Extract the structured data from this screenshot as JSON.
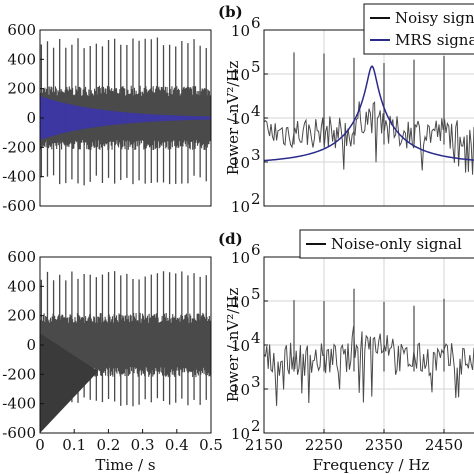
{
  "chart_data": [
    {
      "id": "a",
      "type": "line",
      "panel_label": "",
      "xlabel": "",
      "ylabel": "",
      "xlim": [
        0,
        0.5
      ],
      "ylim": [
        -600,
        600
      ],
      "xticks": [],
      "yticks": [
        600,
        400,
        200,
        0,
        -200,
        -400,
        -600
      ],
      "series": [
        {
          "name": "",
          "role": "noisy",
          "color": "#4a4a4a",
          "spikes_up": 540,
          "spikes_down": -460,
          "base_amplitude": 200
        },
        {
          "name": "",
          "role": "mrs",
          "color": "#3b35a8",
          "envelope_start": 150,
          "envelope_end": 10
        }
      ]
    },
    {
      "id": "b",
      "type": "line",
      "panel_label": "(b)",
      "xlabel": "",
      "ylabel": "Power / nV²/Hz",
      "xlim": [
        2150,
        2500
      ],
      "ylim_log10": [
        2,
        6
      ],
      "yscale": "log",
      "ytick_labels": [
        {
          "base": "10",
          "exp": "6"
        },
        {
          "base": "10",
          "exp": "5"
        },
        {
          "base": "10",
          "exp": "4"
        },
        {
          "base": "10",
          "exp": "3"
        },
        {
          "base": "10",
          "exp": "2"
        }
      ],
      "grid": true,
      "legend": {
        "position": "top-right",
        "entries": [
          {
            "label": "Noisy signal",
            "color": "#111111"
          },
          {
            "label": "MRS signal",
            "color": "#2b2b8c"
          }
        ]
      },
      "series": [
        {
          "name": "Noisy signal",
          "color": "#4a4a4a"
        },
        {
          "name": "MRS signal",
          "color": "#2b2b8c",
          "peak_frequency": 2330,
          "peak_power": 150000
        }
      ]
    },
    {
      "id": "c",
      "type": "line",
      "panel_label": "",
      "xlabel": "Time / s",
      "ylabel": "",
      "xlim": [
        0,
        0.5
      ],
      "ylim": [
        -600,
        600
      ],
      "xticks": [
        0,
        0.1,
        0.2,
        0.3,
        0.4,
        0.5
      ],
      "xtick_labels": [
        "0",
        "0.1",
        "0.2",
        "0.3",
        "0.4",
        "0.5"
      ],
      "yticks": [
        600,
        400,
        200,
        0,
        -200,
        -400,
        -600
      ],
      "series": [
        {
          "name": "",
          "color": "#4a4a4a",
          "spikes_up": 500,
          "spikes_down": -420
        }
      ]
    },
    {
      "id": "d",
      "type": "line",
      "panel_label": "(d)",
      "xlabel": "Frequency / Hz",
      "ylabel": "Power / nV²/Hz",
      "xlim": [
        2150,
        2500
      ],
      "ylim_log10": [
        2,
        6
      ],
      "yscale": "log",
      "xticks": [
        2150,
        2250,
        2350,
        2450
      ],
      "xtick_labels": [
        "2150",
        "2250",
        "2350",
        "2450"
      ],
      "ytick_labels": [
        {
          "base": "10",
          "exp": "6"
        },
        {
          "base": "10",
          "exp": "5"
        },
        {
          "base": "10",
          "exp": "4"
        },
        {
          "base": "10",
          "exp": "3"
        },
        {
          "base": "10",
          "exp": "2"
        }
      ],
      "grid": true,
      "legend": {
        "position": "top-right",
        "entries": [
          {
            "label": "Noise-only signal",
            "color": "#111111"
          }
        ]
      },
      "series": [
        {
          "name": "Noise-only signal",
          "color": "#4a4a4a"
        }
      ]
    }
  ]
}
